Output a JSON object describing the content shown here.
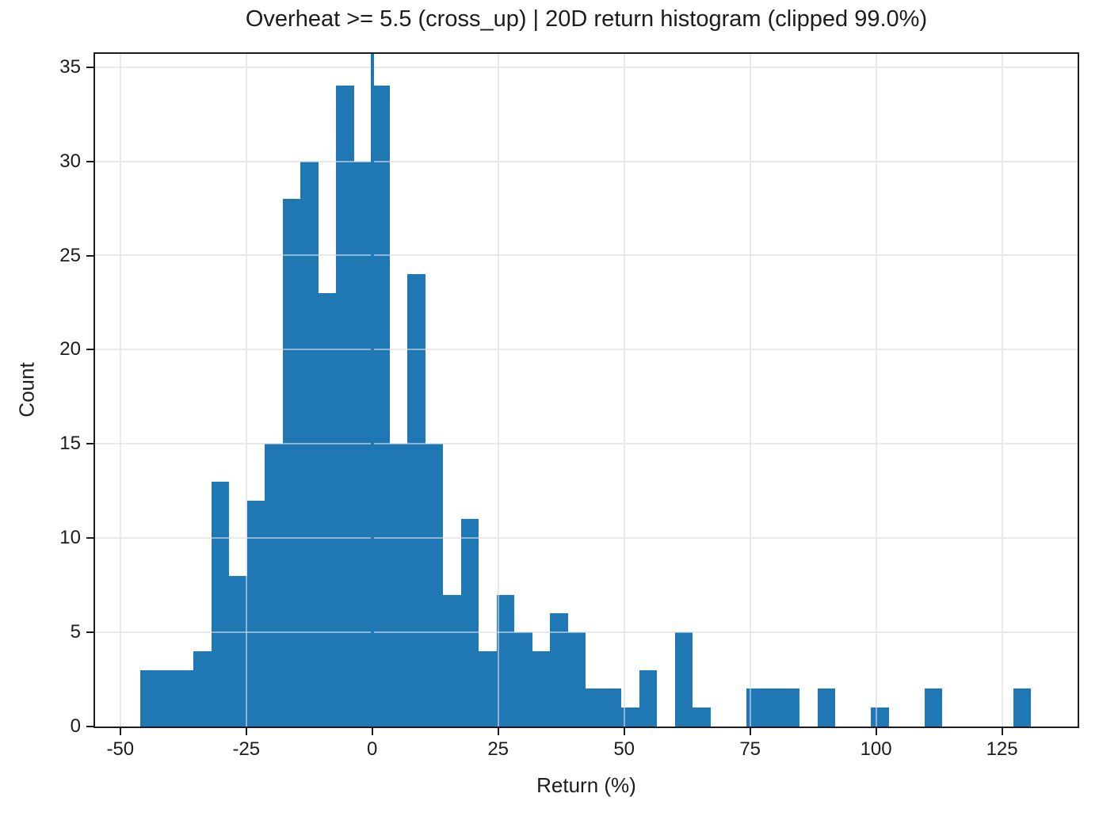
{
  "chart_data": {
    "type": "bar",
    "subtype": "histogram",
    "title": "Overheat >= 5.5 (cross_up) | 20D return histogram (clipped 99.0%)",
    "xlabel": "Return (%)",
    "ylabel": "Count",
    "bar_color": "#1f77b4",
    "grid": "both",
    "legend": "none",
    "bin_start": -46.1,
    "bin_width": 3.538,
    "counts": [
      3,
      3,
      3,
      4,
      13,
      8,
      12,
      15,
      28,
      30,
      23,
      34,
      30,
      34,
      15,
      24,
      15,
      7,
      11,
      4,
      7,
      5,
      4,
      6,
      5,
      2,
      2,
      1,
      3,
      0,
      5,
      1,
      0,
      0,
      2,
      2,
      2,
      0,
      2,
      0,
      0,
      1,
      0,
      0,
      2,
      0,
      0,
      0,
      0,
      2
    ],
    "x_ticks": [
      -50,
      -25,
      0,
      25,
      50,
      75,
      100,
      125
    ],
    "y_ticks": [
      0,
      5,
      10,
      15,
      20,
      25,
      30,
      35
    ],
    "xlim": [
      -55,
      140
    ],
    "ylim": [
      0,
      35.7
    ],
    "zero_line_x": 0
  }
}
